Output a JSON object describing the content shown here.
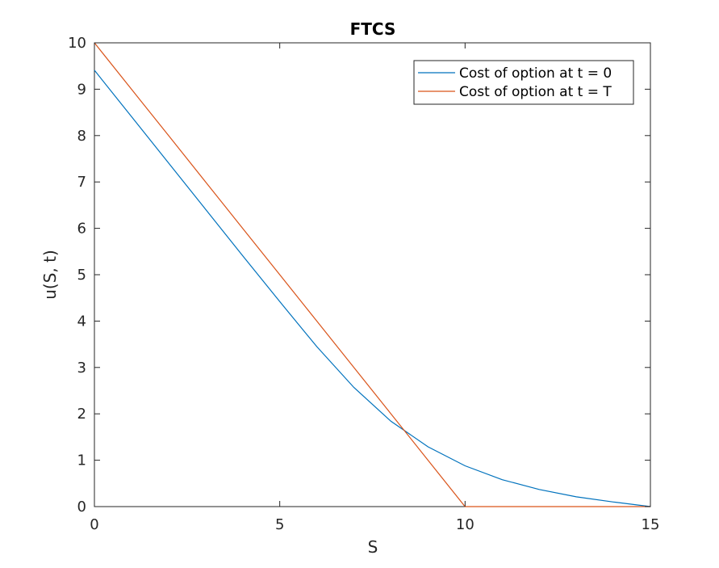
{
  "chart_data": {
    "type": "line",
    "title": "FTCS",
    "xlabel": "S",
    "ylabel": "u(S, t)",
    "xlim": [
      0,
      15
    ],
    "ylim": [
      0,
      10
    ],
    "xticks": [
      "0",
      "5",
      "10",
      "15"
    ],
    "yticks": [
      "0",
      "1",
      "2",
      "3",
      "4",
      "5",
      "6",
      "7",
      "8",
      "9",
      "10"
    ],
    "grid": false,
    "legend_location": "top-right",
    "series": [
      {
        "name": "Cost of option at t = 0",
        "color": "#0072BD",
        "x": [
          0,
          1,
          2,
          3,
          4,
          5,
          6,
          7,
          8,
          9,
          10,
          11,
          12,
          13,
          14,
          15
        ],
        "y": [
          9.41,
          8.41,
          7.41,
          6.41,
          5.41,
          4.42,
          3.45,
          2.57,
          1.84,
          1.29,
          0.88,
          0.58,
          0.37,
          0.21,
          0.1,
          0.0
        ]
      },
      {
        "name": "Cost of option at t = T",
        "color": "#D95319",
        "x": [
          0,
          1,
          2,
          3,
          4,
          5,
          6,
          7,
          8,
          9,
          10,
          11,
          12,
          13,
          14,
          15
        ],
        "y": [
          10,
          9,
          8,
          7,
          6,
          5,
          4,
          3,
          2,
          1,
          0,
          0,
          0,
          0,
          0,
          0
        ]
      }
    ]
  }
}
